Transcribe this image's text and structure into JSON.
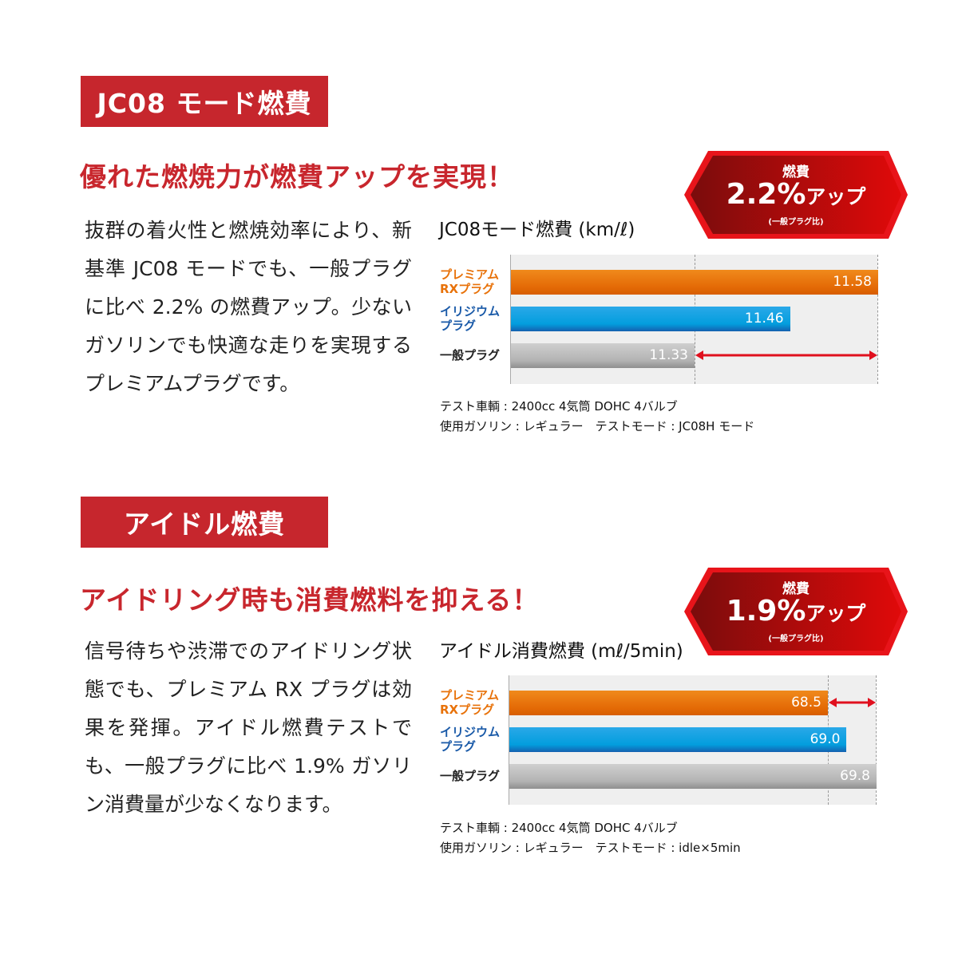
{
  "sections": [
    {
      "header": "JC08 モード燃費",
      "headline": "優れた燃焼力が燃費アップを実現！",
      "body": "抜群の着火性と燃焼効率により、新基準 JC08 モードでも、一般プラグに比べ 2.2% の燃費アップ。少ないガソリンでも快適な走りを実現するプレミアムプラグです。",
      "badge": {
        "label": "燃費",
        "value": "2.2%",
        "suffix": "アップ",
        "note": "(一般プラグ比)"
      },
      "notes": [
        "テスト車輌 : 2400cc 4気筒 DOHC 4バルブ",
        "使用ガソリン : レギュラー　テストモード : JC08H モード"
      ]
    },
    {
      "header": "アイドル燃費",
      "headline": "アイドリング時も消費燃料を抑える！",
      "body": "信号待ちや渋滞でのアイドリング状態でも、プレミアム RX プラグは効果を発揮。アイドル燃費テストでも、一般プラグに比べ 1.9% ガソリン消費量が少なくなります。",
      "badge": {
        "label": "燃費",
        "value": "1.9%",
        "suffix": "アップ",
        "note": "(一般プラグ比)"
      },
      "notes": [
        "テスト車輌 : 2400cc 4気筒 DOHC 4バルブ",
        "使用ガソリン : レギュラー　テストモード : idle×5min"
      ]
    }
  ],
  "colors": {
    "accent": "#c6262d",
    "premium": "#e8720a",
    "iridium": "#0a9fdf",
    "standard": "#b4b4b4",
    "arrow": "#e0101e"
  },
  "chart_data": [
    {
      "type": "bar",
      "orientation": "horizontal",
      "title": "JC08モード燃費 (km/ℓ)",
      "categories": [
        "プレミアム\nRXプラグ",
        "イリジウム\nプラグ",
        "一般プラグ"
      ],
      "category_colors": [
        "#e8720a",
        "#1a5aa8",
        "#222222"
      ],
      "values": [
        11.58,
        11.46,
        11.33
      ],
      "value_labels": [
        "11.58",
        "11.46",
        "11.33"
      ],
      "xlim": [
        11.08,
        11.58
      ],
      "grid": "dashed reference lines",
      "annotation": "double arrow between 一般プラグ and プレミアムRXプラグ"
    },
    {
      "type": "bar",
      "orientation": "horizontal",
      "title": "アイドル消費燃費 (mℓ/5min)",
      "categories": [
        "プレミアム\nRXプラグ",
        "イリジウム\nプラグ",
        "一般プラグ"
      ],
      "category_colors": [
        "#e8720a",
        "#1a5aa8",
        "#222222"
      ],
      "values": [
        68.5,
        69.0,
        69.8
      ],
      "value_labels": [
        "68.5",
        "69.0",
        "69.8"
      ],
      "xlim": [
        60.0,
        69.8
      ],
      "grid": "dashed reference lines",
      "annotation": "double arrow between プレミアムRXプラグ and 一般プラグ"
    }
  ]
}
